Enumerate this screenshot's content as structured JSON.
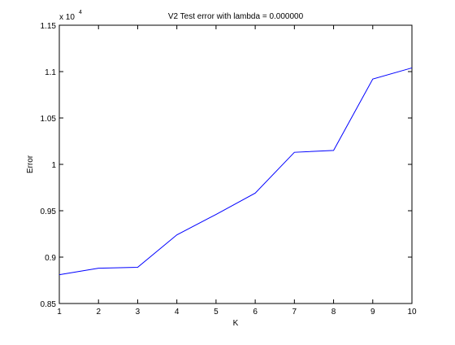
{
  "chart_data": {
    "type": "line",
    "title": "V2 Test error with lambda = 0.000000",
    "xlabel": "K",
    "ylabel": "Error",
    "exponent_label": "x 10",
    "exponent_power": "4",
    "x": [
      1,
      2,
      3,
      4,
      5,
      6,
      7,
      8,
      9,
      10
    ],
    "xlim": [
      1,
      10
    ],
    "ylim": [
      0.85,
      1.15
    ],
    "x_ticks": [
      "1",
      "2",
      "3",
      "4",
      "5",
      "6",
      "7",
      "8",
      "9",
      "10"
    ],
    "y_ticks": [
      "0.85",
      "0.9",
      "0.95",
      "1",
      "1.05",
      "1.1",
      "1.15"
    ],
    "y_tick_values": [
      0.85,
      0.9,
      0.95,
      1.0,
      1.05,
      1.1,
      1.15
    ],
    "series": [
      {
        "values": [
          0.881,
          0.888,
          0.889,
          0.924,
          0.946,
          0.969,
          1.013,
          1.015,
          1.092,
          1.104
        ],
        "color": "#0000ff"
      }
    ],
    "grid": false,
    "legend": "none"
  }
}
